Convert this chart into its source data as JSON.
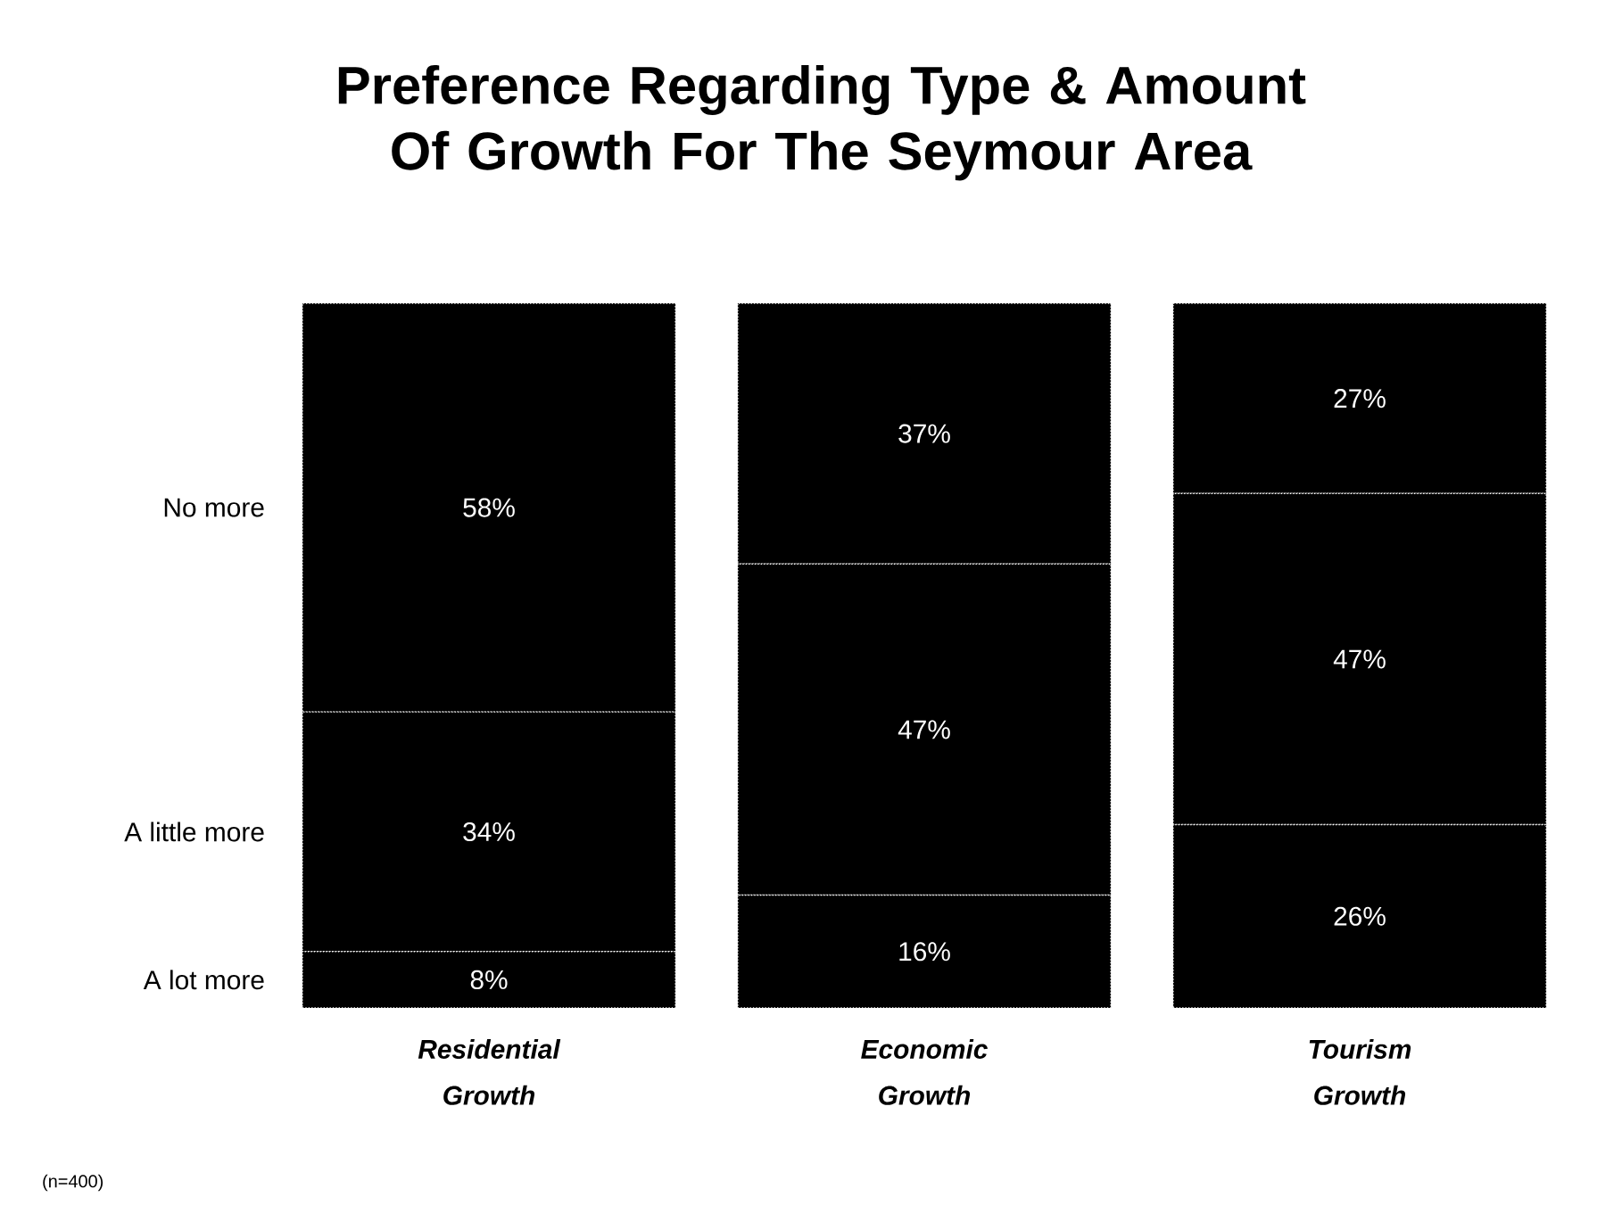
{
  "chart_data": {
    "type": "bar",
    "title": "Preference Regarding Type & Amount Of Growth For The Seymour Area",
    "categories": [
      "Residential Growth",
      "Economic Growth",
      "Tourism Growth"
    ],
    "stacked": true,
    "series": [
      {
        "name": "A lot more",
        "color": "#000000",
        "values": [
          8,
          16,
          26
        ],
        "value_labels": [
          "8%",
          "16%",
          "26%"
        ]
      },
      {
        "name": "A little more",
        "color": "#000000",
        "values": [
          34,
          47,
          47
        ],
        "value_labels": [
          "34%",
          "47%",
          "47%"
        ]
      },
      {
        "name": "No more",
        "color": "#000000",
        "values": [
          58,
          37,
          27
        ],
        "value_labels": [
          "58%",
          "37%",
          "27%"
        ]
      }
    ],
    "annotations": [
      "(n=400)"
    ]
  }
}
